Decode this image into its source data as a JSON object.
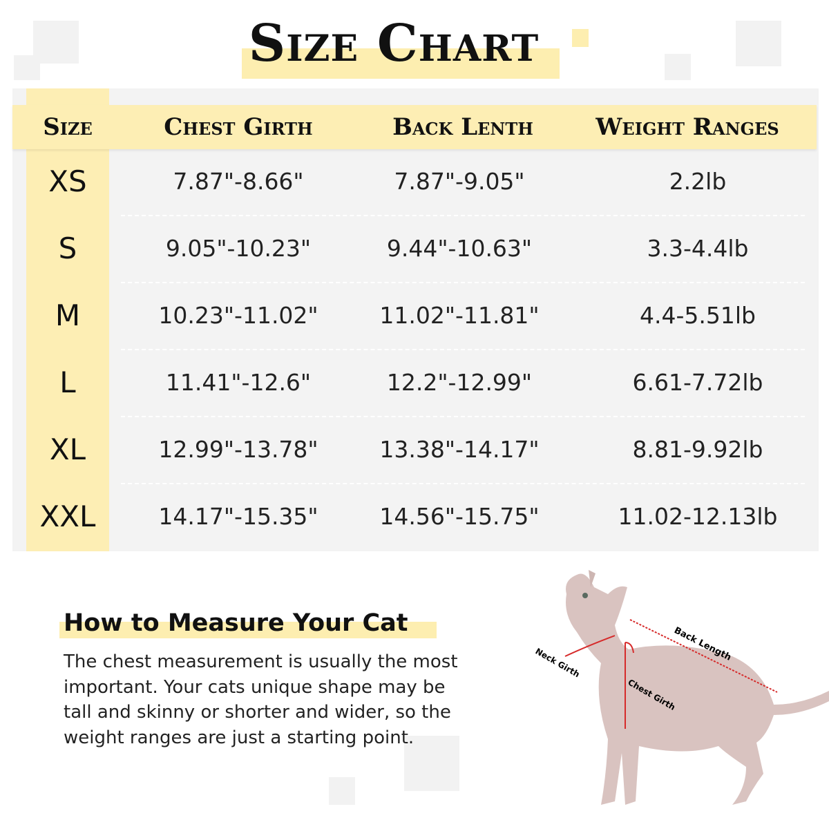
{
  "title": "Size Chart",
  "table": {
    "headers": [
      "Size",
      "Chest Girth",
      "Back Lenth",
      "Weight Ranges"
    ],
    "rows": [
      {
        "size": "XS",
        "chest": "7.87\"-8.66\"",
        "back": "7.87\"-9.05\"",
        "weight": "2.2lb"
      },
      {
        "size": "S",
        "chest": "9.05\"-10.23\"",
        "back": "9.44\"-10.63\"",
        "weight": "3.3-4.4lb"
      },
      {
        "size": "M",
        "chest": "10.23\"-11.02\"",
        "back": "11.02\"-11.81\"",
        "weight": "4.4-5.51lb"
      },
      {
        "size": "L",
        "chest": "11.41\"-12.6\"",
        "back": "12.2\"-12.99\"",
        "weight": "6.61-7.72lb"
      },
      {
        "size": "XL",
        "chest": "12.99\"-13.78\"",
        "back": "13.38\"-14.17\"",
        "weight": "8.81-9.92lb"
      },
      {
        "size": "XXL",
        "chest": "14.17\"-15.35\"",
        "back": "14.56\"-15.75\"",
        "weight": "11.02-12.13lb"
      }
    ]
  },
  "howto": {
    "heading": "How to Measure Your Cat",
    "text": "The chest measurement is usually the most important. Your cats unique shape may be tall and skinny or shorter and wider, so the weight ranges are just a starting point."
  },
  "diagram_labels": {
    "neck": "Neck Girth",
    "chest": "Chest Girth",
    "back": "Back Length"
  },
  "colors": {
    "highlight": "#fdeeb4",
    "panel": "#f3f3f3",
    "arrow": "#d62a2a"
  }
}
